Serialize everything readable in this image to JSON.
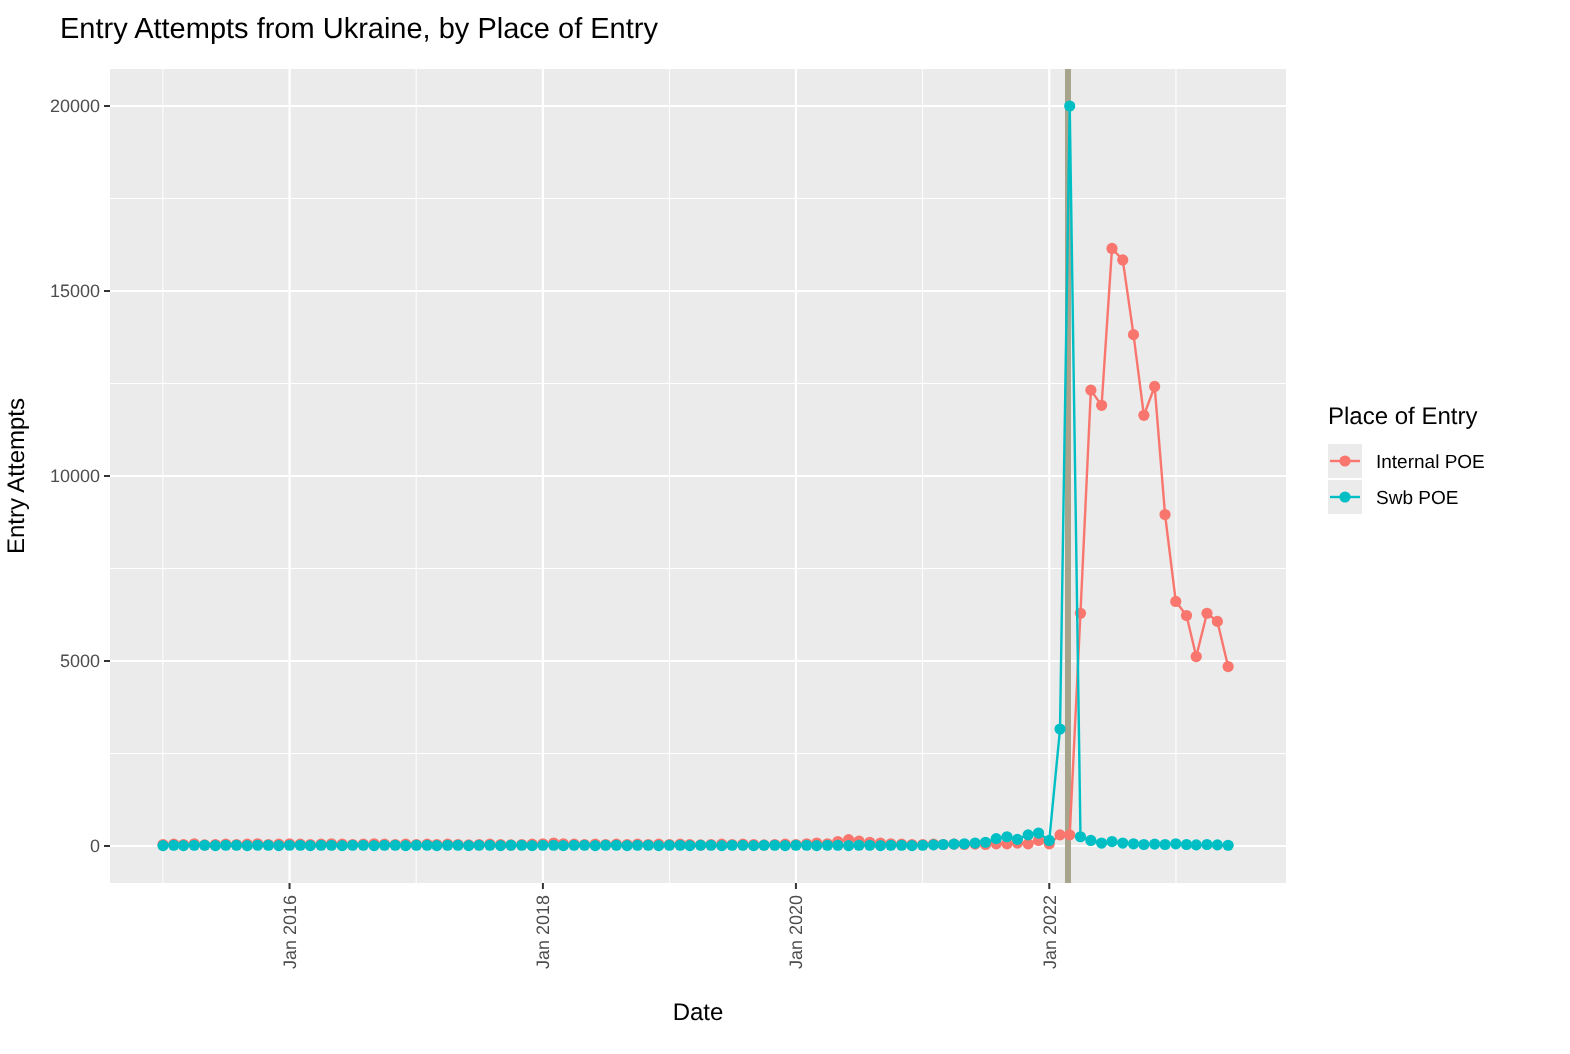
{
  "chart_data": {
    "type": "line",
    "title": "Entry Attempts from Ukraine, by Place of Entry",
    "xlabel": "Date",
    "ylabel": "Entry Attempts",
    "legend_title": "Place of Entry",
    "x": [
      "2015-01",
      "2015-02",
      "2015-03",
      "2015-04",
      "2015-05",
      "2015-06",
      "2015-07",
      "2015-08",
      "2015-09",
      "2015-10",
      "2015-11",
      "2015-12",
      "2016-01",
      "2016-02",
      "2016-03",
      "2016-04",
      "2016-05",
      "2016-06",
      "2016-07",
      "2016-08",
      "2016-09",
      "2016-10",
      "2016-11",
      "2016-12",
      "2017-01",
      "2017-02",
      "2017-03",
      "2017-04",
      "2017-05",
      "2017-06",
      "2017-07",
      "2017-08",
      "2017-09",
      "2017-10",
      "2017-11",
      "2017-12",
      "2018-01",
      "2018-02",
      "2018-03",
      "2018-04",
      "2018-05",
      "2018-06",
      "2018-07",
      "2018-08",
      "2018-09",
      "2018-10",
      "2018-11",
      "2018-12",
      "2019-01",
      "2019-02",
      "2019-03",
      "2019-04",
      "2019-05",
      "2019-06",
      "2019-07",
      "2019-08",
      "2019-09",
      "2019-10",
      "2019-11",
      "2019-12",
      "2020-01",
      "2020-02",
      "2020-03",
      "2020-04",
      "2020-05",
      "2020-06",
      "2020-07",
      "2020-08",
      "2020-09",
      "2020-10",
      "2020-11",
      "2020-12",
      "2021-01",
      "2021-02",
      "2021-03",
      "2021-04",
      "2021-05",
      "2021-06",
      "2021-07",
      "2021-08",
      "2021-09",
      "2021-10",
      "2021-11",
      "2021-12",
      "2022-01",
      "2022-02",
      "2022-03",
      "2022-04",
      "2022-05",
      "2022-06",
      "2022-07",
      "2022-08",
      "2022-09",
      "2022-10",
      "2022-11",
      "2022-12",
      "2023-01",
      "2023-02",
      "2023-03",
      "2023-04",
      "2023-05",
      "2023-06"
    ],
    "series": [
      {
        "name": "Internal POE",
        "color": "#f8766d",
        "values": [
          40,
          50,
          40,
          60,
          30,
          40,
          50,
          40,
          50,
          60,
          40,
          50,
          60,
          50,
          40,
          50,
          60,
          50,
          40,
          50,
          60,
          50,
          40,
          50,
          40,
          50,
          40,
          50,
          40,
          30,
          40,
          50,
          40,
          30,
          40,
          50,
          60,
          80,
          60,
          50,
          40,
          50,
          40,
          50,
          40,
          50,
          40,
          50,
          40,
          50,
          40,
          30,
          40,
          50,
          40,
          50,
          40,
          30,
          40,
          50,
          40,
          60,
          80,
          60,
          120,
          170,
          130,
          100,
          80,
          60,
          50,
          40,
          40,
          50,
          40,
          50,
          40,
          50,
          40,
          60,
          60,
          80,
          60,
          150,
          60,
          300,
          300,
          6290,
          12320,
          11910,
          16150,
          15840,
          13820,
          11640,
          12420,
          8960,
          6610,
          6230,
          5120,
          6290,
          6070,
          4850
        ]
      },
      {
        "name": "Swb POE",
        "color": "#00bfc4",
        "values": [
          10,
          20,
          10,
          20,
          20,
          10,
          20,
          20,
          10,
          20,
          20,
          10,
          20,
          20,
          10,
          20,
          20,
          10,
          20,
          20,
          10,
          20,
          20,
          10,
          20,
          20,
          10,
          20,
          20,
          10,
          20,
          20,
          10,
          20,
          20,
          10,
          20,
          20,
          10,
          20,
          20,
          10,
          20,
          20,
          10,
          20,
          20,
          10,
          20,
          20,
          10,
          20,
          20,
          10,
          20,
          20,
          10,
          20,
          20,
          10,
          20,
          20,
          10,
          20,
          20,
          10,
          20,
          20,
          10,
          20,
          20,
          10,
          20,
          30,
          40,
          50,
          60,
          80,
          100,
          200,
          250,
          180,
          300,
          350,
          150,
          3160,
          20000,
          250,
          150,
          80,
          120,
          80,
          60,
          40,
          50,
          40,
          60,
          40,
          30,
          40,
          30,
          20
        ]
      }
    ],
    "xlim": [
      "2014-08-01",
      "2023-11-15"
    ],
    "xticks": [
      {
        "value": "2016-01",
        "label": "Jan 2016"
      },
      {
        "value": "2018-01",
        "label": "Jan 2018"
      },
      {
        "value": "2020-01",
        "label": "Jan 2020"
      },
      {
        "value": "2022-01",
        "label": "Jan 2022"
      }
    ],
    "ylim": [
      -1000,
      21000
    ],
    "yticks": [
      0,
      5000,
      10000,
      15000,
      20000
    ],
    "ref_lines": [
      {
        "axis": "x",
        "value": "2022-02-24",
        "color": "#a8a48c"
      }
    ],
    "grid": true,
    "legend": "right",
    "marker": "circle",
    "line_style": "solid"
  }
}
